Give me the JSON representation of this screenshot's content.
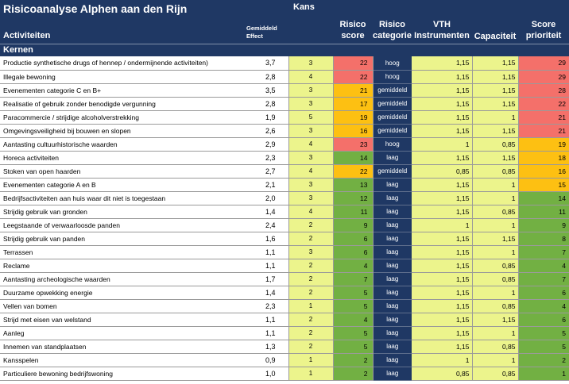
{
  "title": "Risicoanalyse Alphen aan den Rijn",
  "headers": {
    "activiteiten": "Activiteiten",
    "gemiddeld_line1": "Gemiddeld",
    "gemiddeld_line2": "Effect",
    "kans": "Kans",
    "risico_score_line1": "Risico",
    "risico_score_line2": "score",
    "risico_cat_line1": "Risico",
    "risico_cat_line2": "categorie",
    "vth_line1": "VTH",
    "vth_line2": "Instrumenten",
    "capaciteit": "Capaciteit",
    "score_prio_line1": "Score",
    "score_prio_line2": "prioriteit"
  },
  "section": "Kernen",
  "colors": {
    "header_bg": "#1f3864",
    "yellow": "#ecf48c",
    "red": "#f4706a",
    "orange": "#fdc012",
    "green": "#72b043"
  },
  "rows": [
    {
      "name": "Productie synthetische drugs of hennep / ondermijnende activiteiten)",
      "effect": "3,7",
      "kans": "3",
      "score": "22",
      "score_level": "red",
      "cat": "hoog",
      "vth": "1,15",
      "cap": "1,15",
      "prio": "29",
      "prio_level": "red"
    },
    {
      "name": "Illegale bewoning",
      "effect": "2,8",
      "kans": "4",
      "score": "22",
      "score_level": "red",
      "cat": "hoog",
      "vth": "1,15",
      "cap": "1,15",
      "prio": "29",
      "prio_level": "red"
    },
    {
      "name": "Evenementen categorie C en B+",
      "effect": "3,5",
      "kans": "3",
      "score": "21",
      "score_level": "orange",
      "cat": "gemiddeld",
      "vth": "1,15",
      "cap": "1,15",
      "prio": "28",
      "prio_level": "red"
    },
    {
      "name": "Realisatie of gebruik zonder benodigde vergunning",
      "effect": "2,8",
      "kans": "3",
      "score": "17",
      "score_level": "orange",
      "cat": "gemiddeld",
      "vth": "1,15",
      "cap": "1,15",
      "prio": "22",
      "prio_level": "red"
    },
    {
      "name": "Paracommercie / strijdige alcoholverstrekking",
      "effect": "1,9",
      "kans": "5",
      "score": "19",
      "score_level": "orange",
      "cat": "gemiddeld",
      "vth": "1,15",
      "cap": "1",
      "prio": "21",
      "prio_level": "red"
    },
    {
      "name": "Omgevingsveiligheid bij bouwen en slopen",
      "effect": "2,6",
      "kans": "3",
      "score": "16",
      "score_level": "orange",
      "cat": "gemiddeld",
      "vth": "1,15",
      "cap": "1,15",
      "prio": "21",
      "prio_level": "red"
    },
    {
      "name": "Aantasting cultuurhistorische waarden",
      "effect": "2,9",
      "kans": "4",
      "score": "23",
      "score_level": "red",
      "cat": "hoog",
      "vth": "1",
      "cap": "0,85",
      "prio": "19",
      "prio_level": "orange"
    },
    {
      "name": "Horeca activiteiten",
      "effect": "2,3",
      "kans": "3",
      "score": "14",
      "score_level": "green",
      "cat": "laag",
      "vth": "1,15",
      "cap": "1,15",
      "prio": "18",
      "prio_level": "orange"
    },
    {
      "name": "Stoken van open haarden",
      "effect": "2,7",
      "kans": "4",
      "score": "22",
      "score_level": "orange",
      "cat": "gemiddeld",
      "vth": "0,85",
      "cap": "0,85",
      "prio": "16",
      "prio_level": "orange"
    },
    {
      "name": "Evenementen categorie A en B",
      "effect": "2,1",
      "kans": "3",
      "score": "13",
      "score_level": "green",
      "cat": "laag",
      "vth": "1,15",
      "cap": "1",
      "prio": "15",
      "prio_level": "orange"
    },
    {
      "name": "Bedrijfsactiviteiten aan huis waar dit niet is toegestaan",
      "effect": "2,0",
      "kans": "3",
      "score": "12",
      "score_level": "green",
      "cat": "laag",
      "vth": "1,15",
      "cap": "1",
      "prio": "14",
      "prio_level": "green"
    },
    {
      "name": "Strijdig gebruik van gronden",
      "effect": "1,4",
      "kans": "4",
      "score": "11",
      "score_level": "green",
      "cat": "laag",
      "vth": "1,15",
      "cap": "0,85",
      "prio": "11",
      "prio_level": "green"
    },
    {
      "name": "Leegstaande of verwaarloosde panden",
      "effect": "2,4",
      "kans": "2",
      "score": "9",
      "score_level": "green",
      "cat": "laag",
      "vth": "1",
      "cap": "1",
      "prio": "9",
      "prio_level": "green"
    },
    {
      "name": "Strijdig gebruik van panden",
      "effect": "1,6",
      "kans": "2",
      "score": "6",
      "score_level": "green",
      "cat": "laag",
      "vth": "1,15",
      "cap": "1,15",
      "prio": "8",
      "prio_level": "green"
    },
    {
      "name": "Terrassen",
      "effect": "1,1",
      "kans": "3",
      "score": "6",
      "score_level": "green",
      "cat": "laag",
      "vth": "1,15",
      "cap": "1",
      "prio": "7",
      "prio_level": "green"
    },
    {
      "name": "Reclame",
      "effect": "1,1",
      "kans": "2",
      "score": "4",
      "score_level": "green",
      "cat": "laag",
      "vth": "1,15",
      "cap": "0,85",
      "prio": "4",
      "prio_level": "green"
    },
    {
      "name": "Aantasting archeologische waarden",
      "effect": "1,7",
      "kans": "2",
      "score": "7",
      "score_level": "green",
      "cat": "laag",
      "vth": "1,15",
      "cap": "0,85",
      "prio": "7",
      "prio_level": "green"
    },
    {
      "name": "Duurzame opwekking energie",
      "effect": "1,4",
      "kans": "2",
      "score": "5",
      "score_level": "green",
      "cat": "laag",
      "vth": "1,15",
      "cap": "1",
      "prio": "6",
      "prio_level": "green"
    },
    {
      "name": "Vellen van bomen",
      "effect": "2,3",
      "kans": "1",
      "score": "5",
      "score_level": "green",
      "cat": "laag",
      "vth": "1,15",
      "cap": "0,85",
      "prio": "4",
      "prio_level": "green"
    },
    {
      "name": "Strijd met eisen van welstand",
      "effect": "1,1",
      "kans": "2",
      "score": "4",
      "score_level": "green",
      "cat": "laag",
      "vth": "1,15",
      "cap": "1,15",
      "prio": "6",
      "prio_level": "green"
    },
    {
      "name": "Aanleg",
      "effect": "1,1",
      "kans": "2",
      "score": "5",
      "score_level": "green",
      "cat": "laag",
      "vth": "1,15",
      "cap": "1",
      "prio": "5",
      "prio_level": "green"
    },
    {
      "name": "Innemen van standplaatsen",
      "effect": "1,3",
      "kans": "2",
      "score": "5",
      "score_level": "green",
      "cat": "laag",
      "vth": "1,15",
      "cap": "0,85",
      "prio": "5",
      "prio_level": "green"
    },
    {
      "name": "Kansspelen",
      "effect": "0,9",
      "kans": "1",
      "score": "2",
      "score_level": "green",
      "cat": "laag",
      "vth": "1",
      "cap": "1",
      "prio": "2",
      "prio_level": "green"
    },
    {
      "name": "Particuliere bewoning bedrijfswoning",
      "effect": "1,0",
      "kans": "1",
      "score": "2",
      "score_level": "green",
      "cat": "laag",
      "vth": "0,85",
      "cap": "0,85",
      "prio": "1",
      "prio_level": "green"
    }
  ]
}
